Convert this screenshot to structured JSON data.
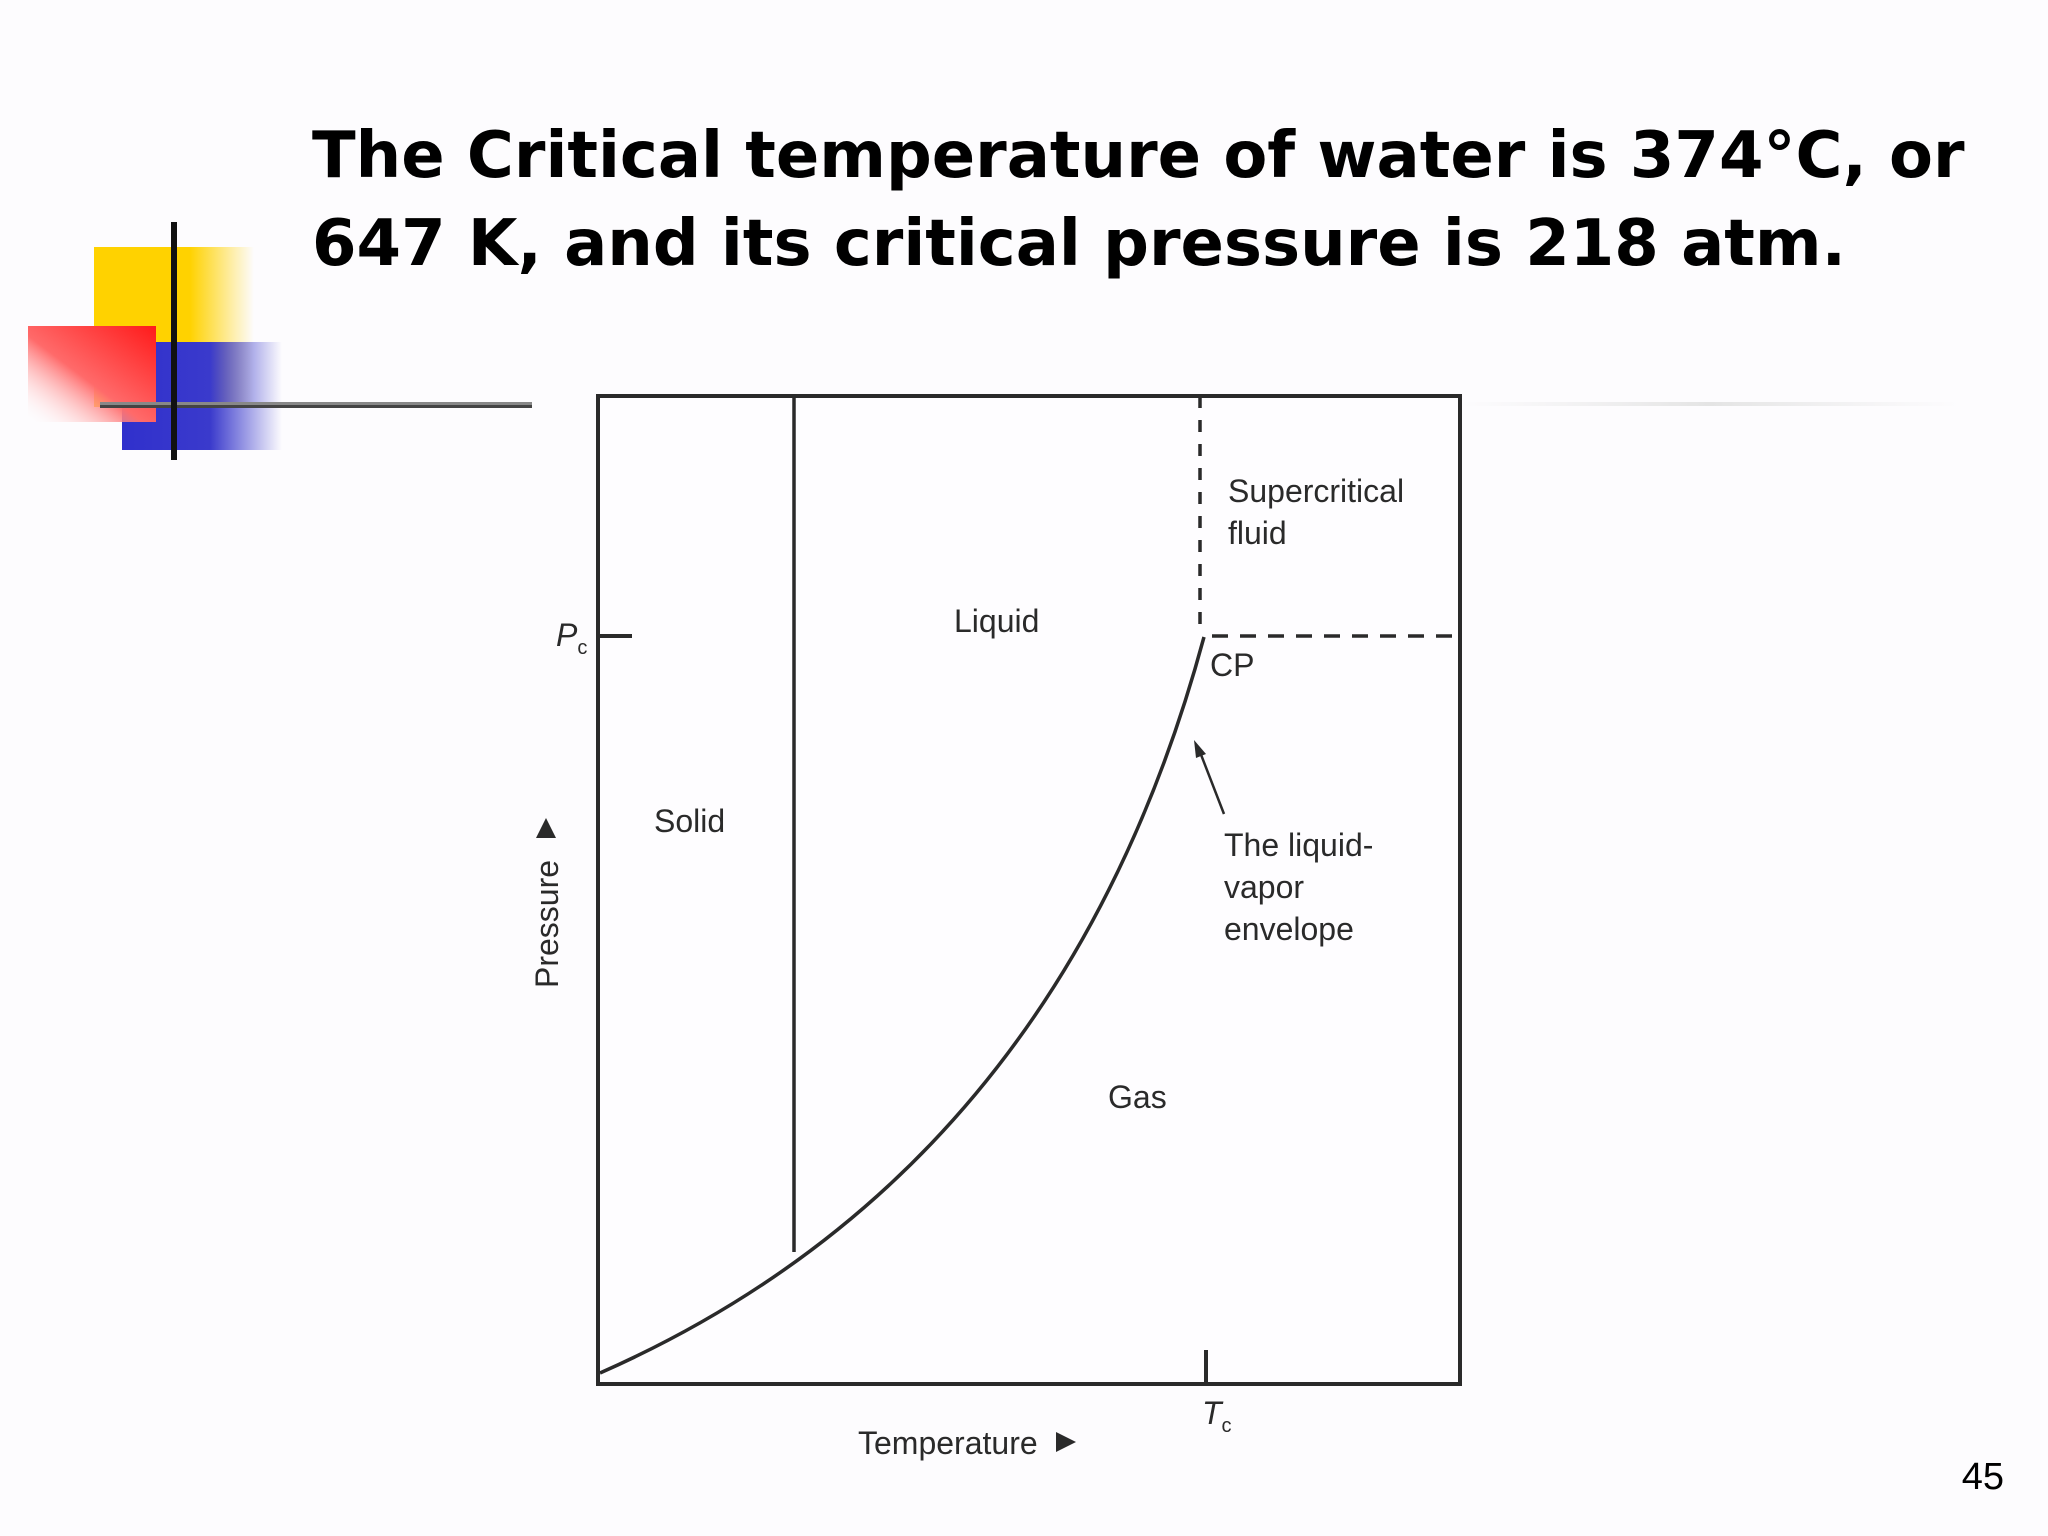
{
  "slide": {
    "title_line1": "The Critical temperature of water is 374°C, or",
    "title_line2": "647 K, and its critical pressure is 218 atm.",
    "page_number": "45"
  },
  "diagram": {
    "regions": {
      "solid": "Solid",
      "liquid": "Liquid",
      "gas": "Gas",
      "supercritical_line1": "Supercritical",
      "supercritical_line2": "fluid"
    },
    "critical_point": "CP",
    "annotation": {
      "line1": "The liquid-",
      "line2": "vapor",
      "line3": "envelope"
    },
    "axes": {
      "x_label": "Temperature",
      "y_label": "Pressure",
      "pc_symbol": "P",
      "pc_subscript": "c",
      "tc_symbol": "T",
      "tc_subscript": "c"
    }
  },
  "colors": {
    "deco_yellow": "#ffd200",
    "deco_red": "#ff2020",
    "deco_blue": "#3333cc",
    "line": "#2a2a2a"
  }
}
